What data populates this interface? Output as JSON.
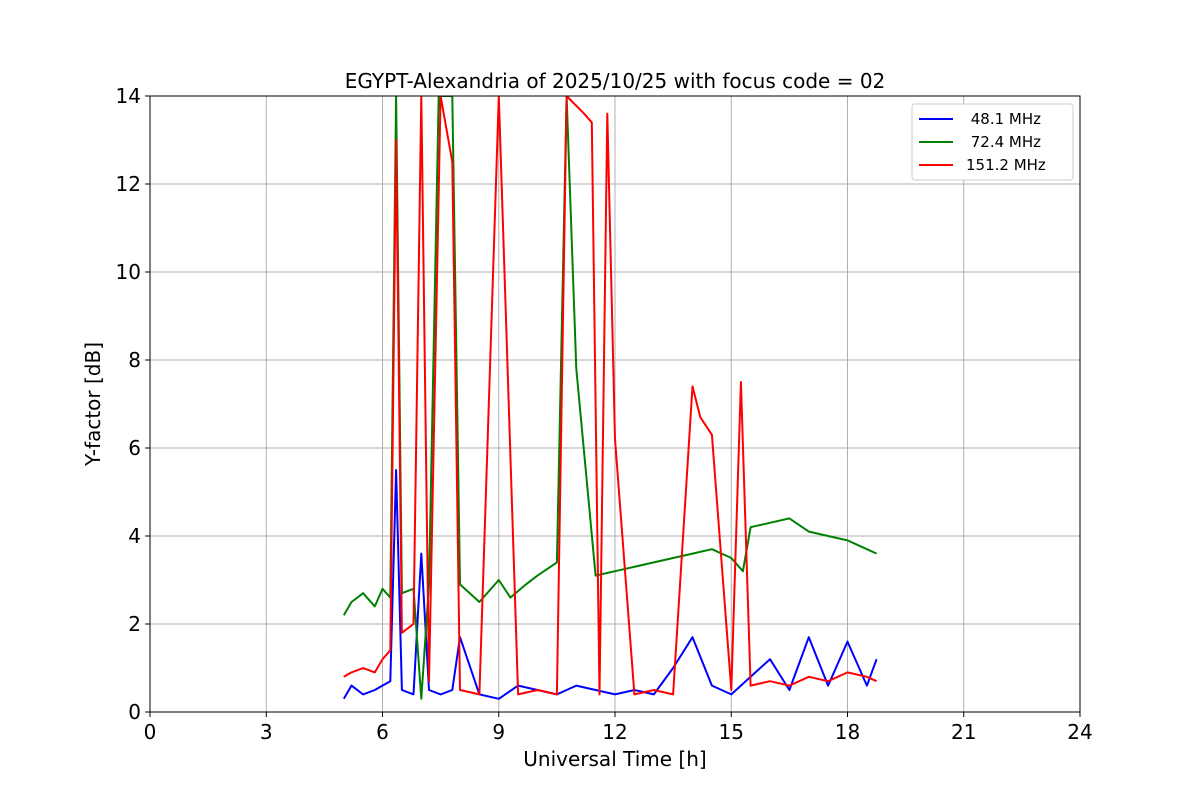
{
  "chart_data": {
    "type": "line",
    "title": "EGYPT-Alexandria of 2025/10/25 with focus code = 02",
    "xlabel": "Universal Time [h]",
    "ylabel": "Y-factor [dB]",
    "xlim": [
      0,
      24
    ],
    "ylim": [
      0,
      14
    ],
    "xticks": [
      0,
      3,
      6,
      9,
      12,
      15,
      18,
      21,
      24
    ],
    "yticks": [
      0,
      2,
      4,
      6,
      8,
      10,
      12,
      14
    ],
    "grid": true,
    "legend_position": "top-right",
    "series": [
      {
        "name": " 48.1 MHz",
        "color": "#0000ff",
        "x": [
          5.0,
          5.2,
          5.5,
          5.8,
          6.0,
          6.2,
          6.35,
          6.5,
          6.8,
          7.0,
          7.2,
          7.5,
          7.8,
          8.0,
          8.5,
          9.0,
          9.5,
          10.0,
          10.5,
          11.0,
          11.5,
          12.0,
          12.5,
          13.0,
          13.5,
          14.0,
          14.5,
          15.0,
          15.5,
          16.0,
          16.5,
          17.0,
          17.5,
          18.0,
          18.5,
          18.75
        ],
        "values": [
          0.3,
          0.6,
          0.4,
          0.5,
          0.6,
          0.7,
          5.5,
          0.5,
          0.4,
          3.6,
          0.5,
          0.4,
          0.5,
          1.7,
          0.4,
          0.3,
          0.6,
          0.5,
          0.4,
          0.6,
          0.5,
          0.4,
          0.5,
          0.4,
          1.0,
          1.7,
          0.6,
          0.4,
          0.8,
          1.2,
          0.5,
          1.7,
          0.6,
          1.6,
          0.6,
          1.2
        ]
      },
      {
        "name": " 72.4 MHz",
        "color": "#008000",
        "x": [
          5.0,
          5.2,
          5.5,
          5.8,
          6.0,
          6.2,
          6.35,
          6.5,
          6.8,
          7.0,
          7.2,
          7.45,
          7.8,
          8.0,
          8.5,
          9.0,
          9.3,
          9.7,
          10.0,
          10.5,
          10.75,
          11.0,
          11.5,
          12.0,
          12.5,
          13.0,
          13.5,
          14.0,
          14.5,
          15.0,
          15.3,
          15.5,
          16.0,
          16.5,
          17.0,
          17.5,
          18.0,
          18.5,
          18.75
        ],
        "values": [
          2.2,
          2.5,
          2.7,
          2.4,
          2.8,
          2.6,
          14,
          2.7,
          2.8,
          0.3,
          2.9,
          14,
          14,
          2.9,
          2.5,
          3.0,
          2.6,
          2.9,
          3.1,
          3.4,
          14,
          7.8,
          3.1,
          3.2,
          3.3,
          3.4,
          3.5,
          3.6,
          3.7,
          3.5,
          3.2,
          4.2,
          4.3,
          4.4,
          4.1,
          4.0,
          3.9,
          3.7,
          3.6
        ]
      },
      {
        "name": "151.2 MHz",
        "color": "#ff0000",
        "x": [
          5.0,
          5.2,
          5.5,
          5.8,
          6.0,
          6.2,
          6.35,
          6.5,
          6.8,
          7.0,
          7.2,
          7.5,
          7.8,
          8.0,
          8.5,
          9.0,
          9.5,
          10.0,
          10.5,
          10.75,
          11.2,
          11.4,
          11.6,
          11.8,
          12.0,
          12.5,
          13.0,
          13.5,
          14.0,
          14.2,
          14.5,
          15.0,
          15.25,
          15.5,
          16.0,
          16.5,
          17.0,
          17.5,
          18.0,
          18.5,
          18.75
        ],
        "values": [
          0.8,
          0.9,
          1.0,
          0.9,
          1.2,
          1.4,
          13.0,
          1.8,
          2.0,
          14,
          0.7,
          14,
          12.5,
          0.5,
          0.4,
          14,
          0.4,
          0.5,
          0.4,
          14,
          13.6,
          13.4,
          0.4,
          13.6,
          6.2,
          0.4,
          0.5,
          0.4,
          7.4,
          6.7,
          6.3,
          0.5,
          7.5,
          0.6,
          0.7,
          0.6,
          0.8,
          0.7,
          0.9,
          0.8,
          0.7
        ]
      }
    ]
  }
}
